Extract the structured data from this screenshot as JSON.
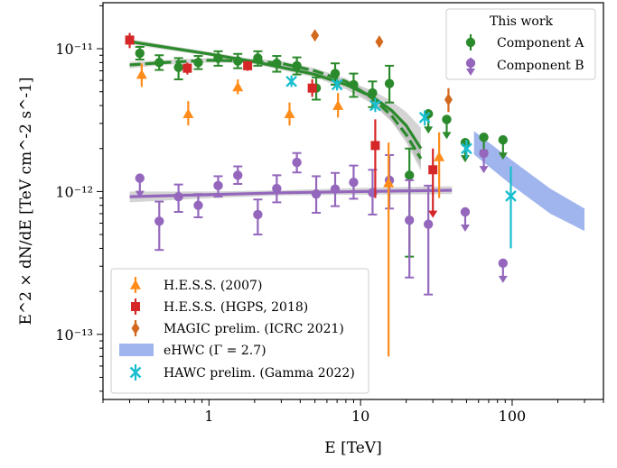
{
  "colors": {
    "component_a": "#2b8a2b",
    "component_b": "#9467bd",
    "hess_2007": "#ff8c1a",
    "hgps": "#d62728",
    "magic": "#d2691e",
    "ehwc": "#8fa8ea",
    "hawc": "#17becf",
    "band_gray": "#b0b0b0"
  },
  "chart_data": {
    "type": "scatter",
    "xlabel": "E [TeV]",
    "ylabel": "E^2 × dN/dE [TeV cm^-2 s^-1]",
    "xscale": "log",
    "yscale": "log",
    "xlim": [
      0.2,
      400
    ],
    "ylim": [
      3.5e-14,
      2.1e-11
    ],
    "x_ticks": [
      1,
      10,
      100
    ],
    "x_tick_labels": [
      "1",
      "10",
      "100"
    ],
    "y_ticks": [
      1e-13,
      1e-12,
      1e-11
    ],
    "y_tick_labels": [
      "10⁻¹³",
      "10⁻¹²",
      "10⁻¹¹"
    ],
    "legend_top": {
      "title": "This work",
      "entries": [
        "Component A",
        "Component B"
      ],
      "placement": "top-right"
    },
    "legend_bottom": {
      "entries": [
        "H.E.S.S. (2007)",
        "H.E.S.S. (HGPS, 2018)",
        "MAGIC prelim. (ICRC 2021)",
        "eHWC (Γ = 2.7)",
        "HAWC prelim. (Gamma 2022)"
      ],
      "placement": "lower-left"
    },
    "series": [
      {
        "name": "Component A",
        "marker": "circle",
        "points": [
          {
            "x": 0.35,
            "y": 9.3e-12,
            "ylo": 8.4e-12,
            "yhi": 1.03e-11
          },
          {
            "x": 0.47,
            "y": 8e-12,
            "ylo": 7.1e-12,
            "yhi": 9e-12
          },
          {
            "x": 0.63,
            "y": 7.4e-12,
            "ylo": 6.1e-12,
            "yhi": 8.6e-12
          },
          {
            "x": 0.85,
            "y": 8e-12,
            "ylo": 7.2e-12,
            "yhi": 8.9e-12
          },
          {
            "x": 1.15,
            "y": 8.6e-12,
            "ylo": 7.6e-12,
            "yhi": 9.6e-12
          },
          {
            "x": 1.55,
            "y": 8.2e-12,
            "ylo": 7.3e-12,
            "yhi": 9.2e-12
          },
          {
            "x": 2.1,
            "y": 8.6e-12,
            "ylo": 7.6e-12,
            "yhi": 9.6e-12
          },
          {
            "x": 2.8,
            "y": 7.9e-12,
            "ylo": 6.9e-12,
            "yhi": 8.9e-12
          },
          {
            "x": 3.8,
            "y": 7.6e-12,
            "ylo": 6.6e-12,
            "yhi": 8.7e-12
          },
          {
            "x": 5.1,
            "y": 5.3e-12,
            "ylo": 4.4e-12,
            "yhi": 6.3e-12
          },
          {
            "x": 6.8,
            "y": 6.7e-12,
            "ylo": 5.6e-12,
            "yhi": 7.9e-12
          },
          {
            "x": 9.0,
            "y": 5.6e-12,
            "ylo": 4.6e-12,
            "yhi": 6.7e-12
          },
          {
            "x": 12.0,
            "y": 4.9e-12,
            "ylo": 3.9e-12,
            "yhi": 5.9e-12
          },
          {
            "x": 15.5,
            "y": 5.7e-12,
            "ylo": 4.2e-12,
            "yhi": 7.6e-12
          },
          {
            "x": 21.0,
            "y": 1.3e-12,
            "ylo": 3.5e-13,
            "yhi": 2e-12
          }
        ],
        "upper_limits": [
          {
            "x": 28,
            "y": 3.5e-12
          },
          {
            "x": 37,
            "y": 3.2e-12
          },
          {
            "x": 49,
            "y": 2.2e-12
          },
          {
            "x": 65,
            "y": 2.4e-12
          },
          {
            "x": 87,
            "y": 2.3e-12
          }
        ]
      },
      {
        "name": "Component B",
        "marker": "circle",
        "points": [
          {
            "x": 0.47,
            "y": 6.2e-13,
            "ylo": 3.9e-13,
            "yhi": 8.5e-13
          },
          {
            "x": 0.63,
            "y": 9.2e-13,
            "ylo": 7.2e-13,
            "yhi": 1.12e-12
          },
          {
            "x": 0.85,
            "y": 8e-13,
            "ylo": 6.6e-13,
            "yhi": 9.6e-13
          },
          {
            "x": 1.15,
            "y": 1.1e-12,
            "ylo": 9.2e-13,
            "yhi": 1.28e-12
          },
          {
            "x": 1.55,
            "y": 1.3e-12,
            "ylo": 1.13e-12,
            "yhi": 1.5e-12
          },
          {
            "x": 2.1,
            "y": 6.9e-13,
            "ylo": 5e-13,
            "yhi": 8.8e-13
          },
          {
            "x": 2.8,
            "y": 1.05e-12,
            "ylo": 8.4e-13,
            "yhi": 1.3e-12
          },
          {
            "x": 3.8,
            "y": 1.6e-12,
            "ylo": 1.36e-12,
            "yhi": 1.86e-12
          },
          {
            "x": 5.1,
            "y": 9.6e-13,
            "ylo": 7.1e-13,
            "yhi": 1.28e-12
          },
          {
            "x": 6.8,
            "y": 1.04e-12,
            "ylo": 7.9e-13,
            "yhi": 1.35e-12
          },
          {
            "x": 9.0,
            "y": 1.16e-12,
            "ylo": 8.9e-13,
            "yhi": 1.52e-12
          },
          {
            "x": 12.0,
            "y": 9.8e-13,
            "ylo": 6.9e-13,
            "yhi": 1.42e-12
          },
          {
            "x": 15.5,
            "y": 1.2e-12,
            "ylo": 7.6e-13,
            "yhi": 1.8e-12
          },
          {
            "x": 21.0,
            "y": 6.3e-13,
            "ylo": 2.5e-13,
            "yhi": 1.2e-12
          },
          {
            "x": 28.0,
            "y": 5.9e-13,
            "ylo": 1.9e-13,
            "yhi": 1.1e-12
          }
        ],
        "upper_limits": [
          {
            "x": 0.35,
            "y": 1.24e-12
          },
          {
            "x": 49,
            "y": 7.2e-13
          },
          {
            "x": 65,
            "y": 1.85e-12
          },
          {
            "x": 87,
            "y": 3.15e-13
          }
        ]
      },
      {
        "name": "H.E.S.S. (2007)",
        "marker": "triangle-up",
        "points": [
          {
            "x": 0.36,
            "y": 6.6e-12,
            "ylo": 5.4e-12,
            "yhi": 7.9e-12
          },
          {
            "x": 0.73,
            "y": 3.5e-12,
            "ylo": 2.9e-12,
            "yhi": 4.3e-12
          },
          {
            "x": 1.55,
            "y": 5.4e-12,
            "ylo": 4.8e-12,
            "yhi": 6.1e-12
          },
          {
            "x": 3.4,
            "y": 3.5e-12,
            "ylo": 2.9e-12,
            "yhi": 4.2e-12
          },
          {
            "x": 7.1,
            "y": 4e-12,
            "ylo": 3.3e-12,
            "yhi": 4.9e-12
          },
          {
            "x": 15.3,
            "y": 1.15e-12,
            "ylo": 7e-14,
            "yhi": 2.2e-12
          },
          {
            "x": 33.0,
            "y": 1.75e-12,
            "ylo": 9e-13,
            "yhi": 2.6e-12
          }
        ]
      },
      {
        "name": "H.E.S.S. (HGPS, 2018)",
        "marker": "square",
        "points": [
          {
            "x": 0.3,
            "y": 1.15e-11,
            "ylo": 1.01e-11,
            "yhi": 1.29e-11
          },
          {
            "x": 0.72,
            "y": 7.3e-12,
            "ylo": 6.6e-12,
            "yhi": 8e-12
          },
          {
            "x": 1.8,
            "y": 7.6e-12,
            "ylo": 7e-12,
            "yhi": 8.2e-12
          },
          {
            "x": 4.8,
            "y": 5.3e-12,
            "ylo": 4.6e-12,
            "yhi": 6.1e-12
          },
          {
            "x": 12.5,
            "y": 2.1e-12,
            "ylo": 9e-13,
            "yhi": 3.2e-12
          },
          {
            "x": 30.0,
            "y": 1.42e-12,
            "ylo": 9e-13,
            "yhi": 2e-12
          }
        ],
        "upper_limits": [
          {
            "x": 30,
            "y": 9e-13
          }
        ]
      },
      {
        "name": "MAGIC prelim. (ICRC 2021)",
        "marker": "diamond",
        "points": [
          {
            "x": 5.0,
            "y": 1.24e-11,
            "ylo": 1.16e-11,
            "yhi": 1.33e-11
          },
          {
            "x": 13.3,
            "y": 1.12e-11,
            "ylo": 1.03e-11,
            "yhi": 1.22e-11
          },
          {
            "x": 38.0,
            "y": 4.4e-12,
            "ylo": 3.6e-12,
            "yhi": 5.3e-12
          }
        ]
      },
      {
        "name": "HAWC prelim. (Gamma 2022)",
        "marker": "x",
        "points": [
          {
            "x": 3.5,
            "y": 5.9e-12,
            "ylo": 5.4e-12,
            "yhi": 6.5e-12
          },
          {
            "x": 7.0,
            "y": 5.6e-12,
            "ylo": 5.1e-12,
            "yhi": 6.1e-12
          },
          {
            "x": 12.5,
            "y": 4e-12,
            "ylo": 3.6e-12,
            "yhi": 4.5e-12
          },
          {
            "x": 26.5,
            "y": 3.3e-12,
            "ylo": 2.9e-12,
            "yhi": 3.7e-12
          },
          {
            "x": 50.0,
            "y": 2e-12,
            "ylo": 1.7e-12,
            "yhi": 2.3e-12
          },
          {
            "x": 98.0,
            "y": 9.3e-13,
            "ylo": 4e-13,
            "yhi": 1.5e-12
          }
        ]
      }
    ],
    "bands": [
      {
        "name": "eHWC (Γ = 2.7)",
        "x": [
          56,
          100,
          178,
          300
        ],
        "ylo": [
          1.82e-12,
          1.1e-12,
          7e-13,
          5.3e-13
        ],
        "yhi": [
          2.65e-12,
          1.65e-12,
          1.05e-12,
          7.6e-13
        ]
      }
    ],
    "fits": [
      {
        "label": "Component A fit 1",
        "style": "solid",
        "x": [
          0.3,
          0.5,
          1,
          2,
          3,
          5,
          8,
          12,
          16,
          20,
          25
        ],
        "y": [
          1.12e-11,
          1.03e-11,
          9.2e-12,
          8.1e-12,
          7.4e-12,
          6.6e-12,
          5.6e-12,
          4.6e-12,
          3.7e-12,
          2.9e-12,
          2e-12
        ],
        "band_lo": [
          1.07e-11,
          9.9e-12,
          8.9e-12,
          7.8e-12,
          7.1e-12,
          6.3e-12,
          5.2e-12,
          4.1e-12,
          3.1e-12,
          2.3e-12,
          1.5e-12
        ],
        "band_hi": [
          1.17e-11,
          1.07e-11,
          9.5e-12,
          8.4e-12,
          7.7e-12,
          6.9e-12,
          6e-12,
          5.1e-12,
          4.3e-12,
          3.6e-12,
          2.8e-12
        ]
      },
      {
        "label": "Component A fit 2",
        "style": "dashed",
        "x": [
          0.3,
          0.5,
          1,
          2,
          3,
          5,
          8,
          12,
          16,
          20,
          25
        ],
        "y": [
          7.7e-12,
          8e-12,
          8.3e-12,
          8.2e-12,
          7.9e-12,
          7e-12,
          5.9e-12,
          4.5e-12,
          3.4e-12,
          2.5e-12,
          1.7e-12
        ],
        "band_lo": [
          7.3e-12,
          7.7e-12,
          8e-12,
          7.9e-12,
          7.6e-12,
          6.7e-12,
          5.6e-12,
          4.2e-12,
          3.1e-12,
          2.2e-12,
          1.4e-12
        ],
        "band_hi": [
          8.1e-12,
          8.3e-12,
          8.6e-12,
          8.5e-12,
          8.2e-12,
          7.3e-12,
          6.2e-12,
          4.8e-12,
          3.7e-12,
          2.8e-12,
          2e-12
        ]
      },
      {
        "label": "Component B fit",
        "style": "solid",
        "x": [
          0.3,
          1,
          3,
          10,
          40
        ],
        "y": [
          9.2e-13,
          9.5e-13,
          9.8e-13,
          1e-12,
          1.02e-12
        ],
        "band_lo": [
          8.4e-13,
          9e-13,
          9.4e-13,
          9.5e-13,
          9.6e-13
        ],
        "band_hi": [
          1e-12,
          1e-12,
          1.02e-12,
          1.06e-12,
          1.09e-12
        ]
      }
    ]
  }
}
